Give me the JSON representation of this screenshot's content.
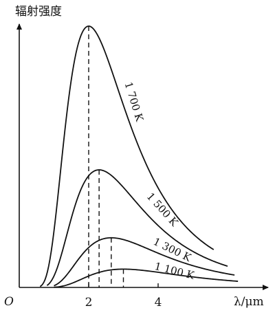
{
  "chart_data": {
    "type": "line",
    "ylabel": "辐射强度",
    "origin_label": "O",
    "xlabel": "λ/μm",
    "x_ticks": [
      {
        "value": 2,
        "label": "2"
      },
      {
        "value": 4,
        "label": "4"
      }
    ],
    "xlim": [
      0,
      7
    ],
    "ylim": [
      0,
      1
    ],
    "grid": false,
    "legend": "none",
    "series": [
      {
        "name": "1 700 K",
        "peak_x": 2.0,
        "peak_y": 1.0,
        "x_start": 0.6,
        "x_end": 5.6
      },
      {
        "name": "1 500 K",
        "peak_x": 2.3,
        "peak_y": 0.45,
        "x_start": 0.8,
        "x_end": 6.0
      },
      {
        "name": "1 300 K",
        "peak_x": 2.65,
        "peak_y": 0.19,
        "x_start": 1.0,
        "x_end": 6.2
      },
      {
        "name": "1 100 K",
        "peak_x": 3.0,
        "peak_y": 0.07,
        "x_start": 1.0,
        "x_end": 6.3
      }
    ]
  }
}
